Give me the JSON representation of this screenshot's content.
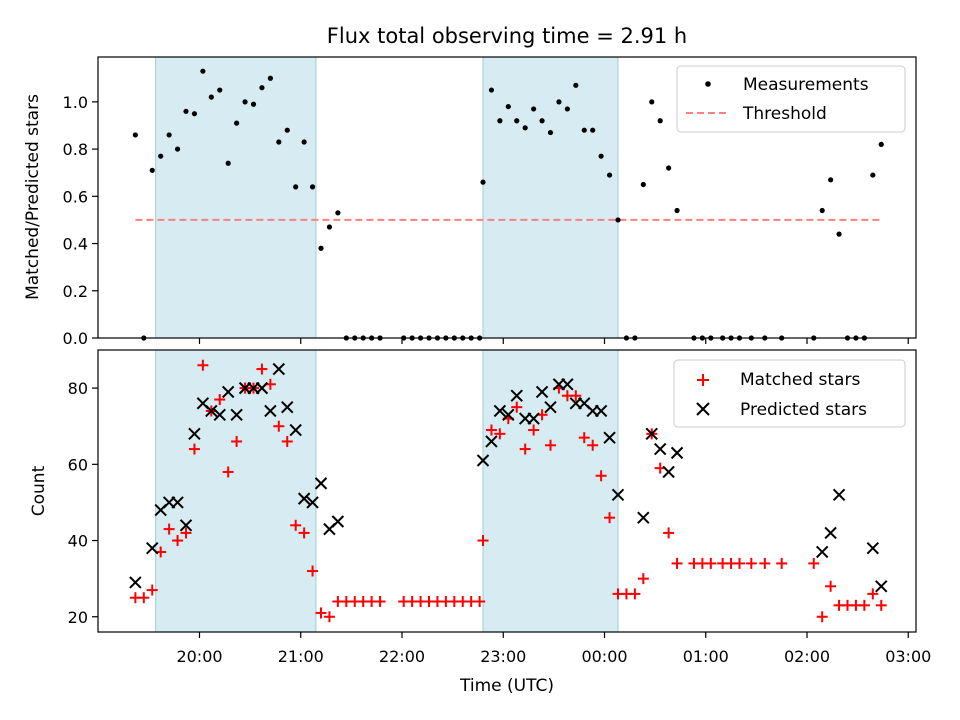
{
  "title": "Flux total observing time = 2.91 h",
  "xlabel": "Time (UTC)",
  "xticks": [
    "20:00",
    "21:00",
    "22:00",
    "23:00",
    "00:00",
    "01:00",
    "02:00",
    "03:00"
  ],
  "colors": {
    "measurements": "#000000",
    "threshold": "#ff7f7f",
    "matched": "#ff0000",
    "predicted": "#000000",
    "shade_fill": "#add8e6",
    "shade_edge": "#9ccfdc"
  },
  "chart_data": [
    {
      "type": "scatter",
      "ylabel": "Matched/Predicted stars",
      "ylim": [
        0,
        1.19
      ],
      "yticks": [
        "0.0",
        "0.2",
        "0.4",
        "0.6",
        "0.8",
        "1.0"
      ],
      "legend": {
        "placement": "top-right",
        "entries": [
          "Measurements",
          "Threshold"
        ]
      },
      "grid": false,
      "shaded_intervals": [
        [
          "19:34",
          "21:09"
        ],
        [
          "22:48",
          "00:08"
        ]
      ],
      "threshold": {
        "y": 0.5,
        "x_range": [
          "19:22",
          "02:45"
        ]
      },
      "series": [
        {
          "name": "Measurements",
          "marker": "dot",
          "points": [
            [
              "19:22",
              0.86
            ],
            [
              "19:27",
              0.0
            ],
            [
              "19:32",
              0.71
            ],
            [
              "19:37",
              0.77
            ],
            [
              "19:42",
              0.86
            ],
            [
              "19:47",
              0.8
            ],
            [
              "19:52",
              0.96
            ],
            [
              "19:57",
              0.95
            ],
            [
              "20:02",
              1.13
            ],
            [
              "20:07",
              1.02
            ],
            [
              "20:12",
              1.05
            ],
            [
              "20:17",
              0.74
            ],
            [
              "20:22",
              0.91
            ],
            [
              "20:27",
              1.0
            ],
            [
              "20:32",
              0.99
            ],
            [
              "20:37",
              1.06
            ],
            [
              "20:42",
              1.1
            ],
            [
              "20:47",
              0.83
            ],
            [
              "20:52",
              0.88
            ],
            [
              "20:57",
              0.64
            ],
            [
              "21:02",
              0.83
            ],
            [
              "21:07",
              0.64
            ],
            [
              "21:12",
              0.38
            ],
            [
              "21:17",
              0.47
            ],
            [
              "21:22",
              0.53
            ],
            [
              "21:27",
              0.0
            ],
            [
              "21:32",
              0.0
            ],
            [
              "21:37",
              0.0
            ],
            [
              "21:42",
              0.0
            ],
            [
              "21:47",
              0.0
            ],
            [
              "22:01",
              0.0
            ],
            [
              "22:06",
              0.0
            ],
            [
              "22:11",
              0.0
            ],
            [
              "22:16",
              0.0
            ],
            [
              "22:21",
              0.0
            ],
            [
              "22:26",
              0.0
            ],
            [
              "22:31",
              0.0
            ],
            [
              "22:36",
              0.0
            ],
            [
              "22:41",
              0.0
            ],
            [
              "22:46",
              0.0
            ],
            [
              "22:48",
              0.66
            ],
            [
              "22:53",
              1.05
            ],
            [
              "22:58",
              0.92
            ],
            [
              "23:03",
              0.98
            ],
            [
              "23:08",
              0.92
            ],
            [
              "23:13",
              0.89
            ],
            [
              "23:18",
              0.97
            ],
            [
              "23:23",
              0.92
            ],
            [
              "23:28",
              0.87
            ],
            [
              "23:33",
              1.0
            ],
            [
              "23:38",
              0.97
            ],
            [
              "23:43",
              1.07
            ],
            [
              "23:48",
              0.88
            ],
            [
              "23:53",
              0.88
            ],
            [
              "23:58",
              0.77
            ],
            [
              "00:03",
              0.69
            ],
            [
              "00:08",
              0.5
            ],
            [
              "00:13",
              0.0
            ],
            [
              "00:18",
              0.0
            ],
            [
              "00:23",
              0.65
            ],
            [
              "00:28",
              1.0
            ],
            [
              "00:33",
              0.92
            ],
            [
              "00:38",
              0.72
            ],
            [
              "00:43",
              0.54
            ],
            [
              "00:53",
              0.0
            ],
            [
              "00:58",
              0.0
            ],
            [
              "01:03",
              0.0
            ],
            [
              "01:10",
              0.0
            ],
            [
              "01:15",
              0.0
            ],
            [
              "01:20",
              0.0
            ],
            [
              "01:27",
              0.0
            ],
            [
              "01:35",
              0.0
            ],
            [
              "01:45",
              0.0
            ],
            [
              "02:04",
              0.0
            ],
            [
              "02:09",
              0.54
            ],
            [
              "02:14",
              0.67
            ],
            [
              "02:19",
              0.44
            ],
            [
              "02:24",
              0.0
            ],
            [
              "02:29",
              0.0
            ],
            [
              "02:34",
              0.0
            ],
            [
              "02:39",
              0.69
            ],
            [
              "02:44",
              0.82
            ]
          ]
        }
      ]
    },
    {
      "type": "scatter",
      "ylabel": "Count",
      "ylim": [
        16,
        90
      ],
      "yticks": [
        "20",
        "40",
        "60",
        "80"
      ],
      "legend": {
        "placement": "top-right",
        "entries": [
          "Matched stars",
          "Predicted stars"
        ]
      },
      "grid": false,
      "shaded_intervals": [
        [
          "19:34",
          "21:09"
        ],
        [
          "22:48",
          "00:08"
        ]
      ],
      "series": [
        {
          "name": "Matched stars",
          "marker": "plus",
          "points": [
            [
              "19:22",
              25
            ],
            [
              "19:27",
              25
            ],
            [
              "19:32",
              27
            ],
            [
              "19:37",
              37
            ],
            [
              "19:42",
              43
            ],
            [
              "19:47",
              40
            ],
            [
              "19:52",
              42
            ],
            [
              "19:57",
              64
            ],
            [
              "20:02",
              86
            ],
            [
              "20:07",
              74
            ],
            [
              "20:12",
              77
            ],
            [
              "20:17",
              58
            ],
            [
              "20:22",
              66
            ],
            [
              "20:27",
              80
            ],
            [
              "20:32",
              80
            ],
            [
              "20:37",
              85
            ],
            [
              "20:42",
              81
            ],
            [
              "20:47",
              70
            ],
            [
              "20:52",
              66
            ],
            [
              "20:57",
              44
            ],
            [
              "21:02",
              42
            ],
            [
              "21:07",
              32
            ],
            [
              "21:12",
              21
            ],
            [
              "21:17",
              20
            ],
            [
              "21:22",
              24
            ],
            [
              "21:27",
              24
            ],
            [
              "21:32",
              24
            ],
            [
              "21:37",
              24
            ],
            [
              "21:42",
              24
            ],
            [
              "21:47",
              24
            ],
            [
              "22:01",
              24
            ],
            [
              "22:06",
              24
            ],
            [
              "22:11",
              24
            ],
            [
              "22:16",
              24
            ],
            [
              "22:21",
              24
            ],
            [
              "22:26",
              24
            ],
            [
              "22:31",
              24
            ],
            [
              "22:36",
              24
            ],
            [
              "22:41",
              24
            ],
            [
              "22:46",
              24
            ],
            [
              "22:48",
              40
            ],
            [
              "22:53",
              69
            ],
            [
              "22:58",
              68
            ],
            [
              "23:03",
              72
            ],
            [
              "23:08",
              75
            ],
            [
              "23:13",
              64
            ],
            [
              "23:18",
              69
            ],
            [
              "23:23",
              73
            ],
            [
              "23:28",
              65
            ],
            [
              "23:33",
              80
            ],
            [
              "23:38",
              78
            ],
            [
              "23:43",
              78
            ],
            [
              "23:48",
              67
            ],
            [
              "23:53",
              65
            ],
            [
              "23:58",
              57
            ],
            [
              "00:03",
              46
            ],
            [
              "00:08",
              26
            ],
            [
              "00:13",
              26
            ],
            [
              "00:18",
              26
            ],
            [
              "00:23",
              30
            ],
            [
              "00:28",
              68
            ],
            [
              "00:33",
              59
            ],
            [
              "00:38",
              42
            ],
            [
              "00:43",
              34
            ],
            [
              "00:53",
              34
            ],
            [
              "00:58",
              34
            ],
            [
              "01:03",
              34
            ],
            [
              "01:10",
              34
            ],
            [
              "01:15",
              34
            ],
            [
              "01:20",
              34
            ],
            [
              "01:27",
              34
            ],
            [
              "01:35",
              34
            ],
            [
              "01:45",
              34
            ],
            [
              "02:04",
              34
            ],
            [
              "02:09",
              20
            ],
            [
              "02:14",
              28
            ],
            [
              "02:19",
              23
            ],
            [
              "02:24",
              23
            ],
            [
              "02:29",
              23
            ],
            [
              "02:34",
              23
            ],
            [
              "02:39",
              26
            ],
            [
              "02:44",
              23
            ]
          ]
        },
        {
          "name": "Predicted stars",
          "marker": "x",
          "points": [
            [
              "19:22",
              29
            ],
            [
              "19:32",
              38
            ],
            [
              "19:37",
              48
            ],
            [
              "19:42",
              50
            ],
            [
              "19:47",
              50
            ],
            [
              "19:52",
              44
            ],
            [
              "19:57",
              68
            ],
            [
              "20:02",
              76
            ],
            [
              "20:07",
              74
            ],
            [
              "20:12",
              73
            ],
            [
              "20:17",
              79
            ],
            [
              "20:22",
              73
            ],
            [
              "20:27",
              80
            ],
            [
              "20:32",
              80
            ],
            [
              "20:37",
              80
            ],
            [
              "20:42",
              74
            ],
            [
              "20:47",
              85
            ],
            [
              "20:52",
              75
            ],
            [
              "20:57",
              69
            ],
            [
              "21:02",
              51
            ],
            [
              "21:07",
              50
            ],
            [
              "21:12",
              55
            ],
            [
              "21:17",
              43
            ],
            [
              "21:22",
              45
            ],
            [
              "22:48",
              61
            ],
            [
              "22:53",
              66
            ],
            [
              "22:58",
              74
            ],
            [
              "23:03",
              73
            ],
            [
              "23:08",
              78
            ],
            [
              "23:13",
              72
            ],
            [
              "23:18",
              72
            ],
            [
              "23:23",
              79
            ],
            [
              "23:28",
              75
            ],
            [
              "23:33",
              81
            ],
            [
              "23:38",
              81
            ],
            [
              "23:43",
              76
            ],
            [
              "23:48",
              76
            ],
            [
              "23:53",
              74
            ],
            [
              "23:58",
              74
            ],
            [
              "00:03",
              67
            ],
            [
              "00:08",
              52
            ],
            [
              "00:23",
              46
            ],
            [
              "00:28",
              68
            ],
            [
              "00:33",
              64
            ],
            [
              "00:38",
              58
            ],
            [
              "00:43",
              63
            ],
            [
              "02:09",
              37
            ],
            [
              "02:14",
              42
            ],
            [
              "02:19",
              52
            ],
            [
              "02:39",
              38
            ],
            [
              "02:44",
              28
            ]
          ]
        }
      ]
    }
  ]
}
